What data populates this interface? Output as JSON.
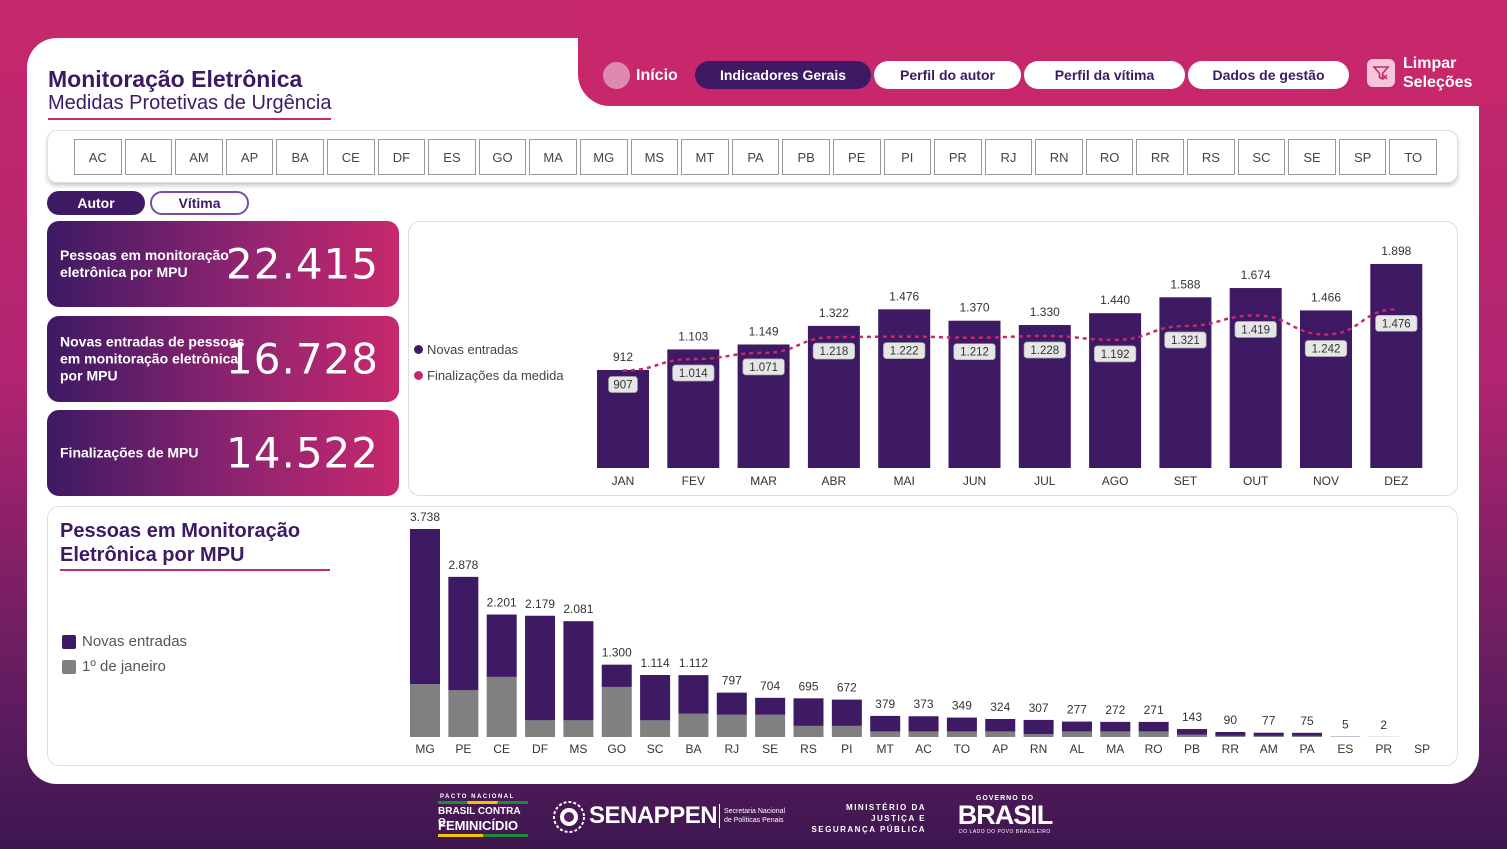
{
  "header": {
    "title": "Monitoração Eletrônica",
    "subtitle": "Medidas Protetivas de Urgência"
  },
  "nav": {
    "home_label": "Início",
    "tabs": [
      {
        "label": "Indicadores Gerais",
        "active": true
      },
      {
        "label": "Perfil do autor",
        "active": false
      },
      {
        "label": "Perfil da vítima",
        "active": false
      },
      {
        "label": "Dados de gestão",
        "active": false
      }
    ],
    "clear_line1": "Limpar",
    "clear_line2": "Seleções"
  },
  "states": [
    "AC",
    "AL",
    "AM",
    "AP",
    "BA",
    "CE",
    "DF",
    "ES",
    "GO",
    "MA",
    "MG",
    "MS",
    "MT",
    "PA",
    "PB",
    "PE",
    "PI",
    "PR",
    "RJ",
    "RN",
    "RO",
    "RR",
    "RS",
    "SC",
    "SE",
    "SP",
    "TO"
  ],
  "toggle": {
    "autor": "Autor",
    "vitima": "Vítima",
    "selected": "Autor"
  },
  "kpis": [
    {
      "label": "Pessoas em monitoração eletrônica por MPU",
      "value": "22.415"
    },
    {
      "label": "Novas entradas de pessoas em monitoração eletrônica por MPU",
      "value": "16.728"
    },
    {
      "label": "Finalizações de MPU",
      "value": "14.522"
    }
  ],
  "colors": {
    "primary": "#3d1a63",
    "accent": "#c7286c",
    "gray": "#808080"
  },
  "chart_data": [
    {
      "type": "bar",
      "categories": [
        "JAN",
        "FEV",
        "MAR",
        "ABR",
        "MAI",
        "JUN",
        "JUL",
        "AGO",
        "SET",
        "OUT",
        "NOV",
        "DEZ"
      ],
      "series": [
        {
          "name": "Novas entradas",
          "values": [
            912,
            1103,
            1149,
            1322,
            1476,
            1370,
            1330,
            1440,
            1588,
            1674,
            1466,
            1898
          ],
          "labels": [
            "912",
            "1.103",
            "1.149",
            "1.322",
            "1.476",
            "1.370",
            "1.330",
            "1.440",
            "1.588",
            "1.674",
            "1.466",
            "1.898"
          ]
        },
        {
          "name": "Finalizações da medida",
          "type": "line",
          "values": [
            907,
            1014,
            1071,
            1218,
            1222,
            1212,
            1228,
            1192,
            1321,
            1419,
            1242,
            1476
          ],
          "labels": [
            "907",
            "1.014",
            "1.071",
            "1.218",
            "1.222",
            "1.212",
            "1.228",
            "1.192",
            "1.321",
            "1.419",
            "1.242",
            "1.476"
          ]
        }
      ],
      "ylim": [
        0,
        2000
      ],
      "legend": "left"
    },
    {
      "type": "bar",
      "title": "Pessoas em Monitoração Eletrônica por MPU",
      "categories": [
        "MG",
        "PE",
        "CE",
        "DF",
        "MS",
        "GO",
        "SC",
        "BA",
        "RJ",
        "SE",
        "RS",
        "PI",
        "MT",
        "AC",
        "TO",
        "AP",
        "RN",
        "AL",
        "MA",
        "RO",
        "PB",
        "RR",
        "AM",
        "PA",
        "ES",
        "PR",
        "SP"
      ],
      "totals": [
        3738,
        2878,
        2201,
        2179,
        2081,
        1300,
        1114,
        1112,
        797,
        704,
        695,
        672,
        379,
        373,
        349,
        324,
        307,
        277,
        272,
        271,
        143,
        90,
        77,
        75,
        5,
        2,
        0
      ],
      "total_labels": [
        "3.738",
        "2.878",
        "2.201",
        "2.179",
        "2.081",
        "1.300",
        "1.114",
        "1.112",
        "797",
        "704",
        "695",
        "672",
        "379",
        "373",
        "349",
        "324",
        "307",
        "277",
        "272",
        "271",
        "143",
        "90",
        "77",
        "75",
        "5",
        "2",
        ""
      ],
      "series": [
        {
          "name": "Novas entradas",
          "values": [
            2788,
            2038,
            1121,
            1879,
            1781,
            400,
            814,
            692,
            397,
            304,
            495,
            472,
            279,
            273,
            249,
            224,
            257,
            177,
            172,
            171,
            103,
            70,
            57,
            55,
            5,
            2,
            0
          ]
        },
        {
          "name": "1º de janeiro",
          "values": [
            950,
            840,
            1080,
            300,
            300,
            900,
            300,
            420,
            400,
            400,
            200,
            200,
            100,
            100,
            100,
            100,
            50,
            100,
            100,
            100,
            40,
            20,
            20,
            20,
            0,
            0,
            0
          ]
        }
      ],
      "ylim": [
        0,
        3900
      ],
      "legend": "left"
    }
  ],
  "footer": {
    "pact_line1": "PACTO NACIONAL",
    "pact_line2": "BRASIL CONTRA O",
    "pact_line3": "FEMINICÍDIO",
    "senappen": "SENAPPEN",
    "senappen_sub1": "Secretaria Nacional",
    "senappen_sub2": "de Políticas Penais",
    "mj1": "MINISTÉRIO DA",
    "mj2": "JUSTIÇA E",
    "mj3": "SEGURANÇA PÚBLICA",
    "gov1": "GOVERNO DO",
    "gov2": "BRASIL",
    "gov3": "DO LADO DO POVO BRASILEIRO"
  }
}
